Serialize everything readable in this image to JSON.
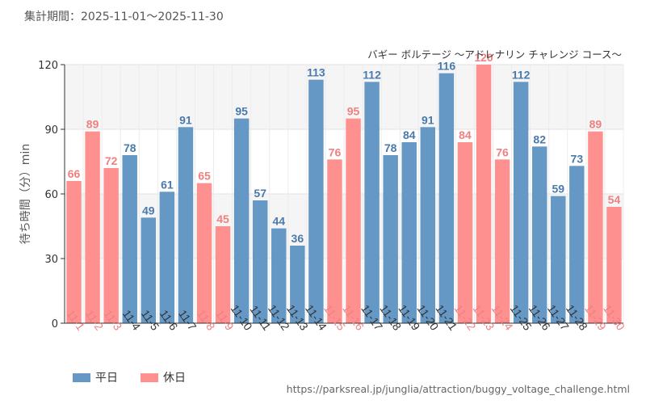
{
  "header": {
    "period_label": "集計期間：2025-11-01～2025-11-30"
  },
  "colors": {
    "weekday": "#6598C5",
    "holiday": "#FF9090",
    "text_weekday": "#4A7AAC",
    "text_holiday": "#F08080"
  },
  "legend": [
    {
      "label": "平日",
      "color_key": "weekday"
    },
    {
      "label": "休日",
      "color_key": "holiday"
    }
  ],
  "footer": {
    "source_url": "https://parksreal.jp/junglia/attraction/buggy_voltage_challenge.html"
  },
  "chart_data": {
    "type": "bar",
    "title": "バギー ボルテージ ～アドレナリン チャレンジ コース～",
    "xlabel": "",
    "ylabel": "待ち時間（分）min",
    "ylim": [
      0,
      120
    ],
    "yticks": [
      0,
      30,
      60,
      90,
      120
    ],
    "grid": true,
    "categories": [
      "11-1",
      "11-2",
      "11-3",
      "11-4",
      "11-5",
      "11-6",
      "11-7",
      "11-8",
      "11-9",
      "11-10",
      "11-11",
      "11-12",
      "11-13",
      "11-14",
      "11-15",
      "11-16",
      "11-17",
      "11-18",
      "11-19",
      "11-20",
      "11-21",
      "11-22",
      "11-23",
      "11-24",
      "11-25",
      "11-26",
      "11-27",
      "11-28",
      "11-29",
      "11-30"
    ],
    "values": [
      66,
      89,
      72,
      78,
      49,
      61,
      91,
      65,
      45,
      95,
      57,
      44,
      36,
      113,
      76,
      95,
      112,
      78,
      84,
      91,
      116,
      84,
      120,
      76,
      112,
      82,
      59,
      73,
      89,
      54
    ],
    "day_type": [
      "holiday",
      "holiday",
      "holiday",
      "weekday",
      "weekday",
      "weekday",
      "weekday",
      "holiday",
      "holiday",
      "weekday",
      "weekday",
      "weekday",
      "weekday",
      "weekday",
      "holiday",
      "holiday",
      "weekday",
      "weekday",
      "weekday",
      "weekday",
      "weekday",
      "holiday",
      "holiday",
      "holiday",
      "weekday",
      "weekday",
      "weekday",
      "weekday",
      "holiday",
      "holiday"
    ]
  }
}
